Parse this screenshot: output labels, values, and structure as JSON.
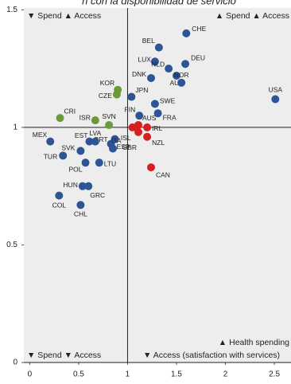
{
  "chart_data": {
    "type": "scatter",
    "title": "n con la disponibilidad de servicio",
    "xlim": [
      -0.06,
      2.67
    ],
    "ylim": [
      0,
      1.508
    ],
    "xticks": [
      0,
      0.5,
      1,
      1.5,
      2,
      2.5
    ],
    "yticks": [
      0,
      0.5,
      1,
      1.5
    ],
    "xref": 1,
    "yref": 1,
    "annotations": [
      "▼ Spend ▲ Access",
      "▲ Spend ▲ Access",
      "▼ Spend ▼ Access",
      "▼ Access (satisfaction with services)",
      "▲ Health spending"
    ],
    "points": [
      {
        "label": "CHE",
        "x": 1.6,
        "y": 1.4,
        "color": "#2d5596"
      },
      {
        "label": "BEL",
        "x": 1.32,
        "y": 1.34,
        "color": "#2d5596"
      },
      {
        "label": "DEU",
        "x": 1.59,
        "y": 1.27,
        "color": "#2d5596"
      },
      {
        "label": "LUX",
        "x": 1.28,
        "y": 1.28,
        "color": "#2d5596"
      },
      {
        "label": "NLD",
        "x": 1.42,
        "y": 1.25,
        "color": "#2d5596"
      },
      {
        "label": "DNK",
        "x": 1.24,
        "y": 1.21,
        "color": "#2d5596"
      },
      {
        "label": "AUT",
        "x": 1.5,
        "y": 1.22,
        "color": "#2d5596"
      },
      {
        "label": "NOR",
        "x": 1.55,
        "y": 1.19,
        "color": "#2d5596"
      },
      {
        "label": "KOR",
        "x": 0.9,
        "y": 1.16,
        "color": "#6a9a3a"
      },
      {
        "label": "CZE",
        "x": 0.89,
        "y": 1.14,
        "color": "#6a9a3a"
      },
      {
        "label": "JPN",
        "x": 1.04,
        "y": 1.13,
        "color": "#2d5596"
      },
      {
        "label": "SWE",
        "x": 1.28,
        "y": 1.1,
        "color": "#2d5596"
      },
      {
        "label": "FIN",
        "x": 1.12,
        "y": 1.05,
        "color": "#2d5596"
      },
      {
        "label": "FRA",
        "x": 1.31,
        "y": 1.06,
        "color": "#2d5596"
      },
      {
        "label": "USA",
        "x": 2.51,
        "y": 1.12,
        "color": "#2d5596"
      },
      {
        "label": "CRI",
        "x": 0.31,
        "y": 1.04,
        "color": "#6a9a3a"
      },
      {
        "label": "ISR",
        "x": 0.67,
        "y": 1.03,
        "color": "#6a9a3a"
      },
      {
        "label": "SVN",
        "x": 0.81,
        "y": 1.01,
        "color": "#6a9a3a"
      },
      {
        "label": "AUS",
        "x": 1.11,
        "y": 1.01,
        "color": "#d62020"
      },
      {
        "label": "ISL",
        "x": 1.05,
        "y": 1.0,
        "color": "#d62020"
      },
      {
        "label": "GBR",
        "x": 1.11,
        "y": 0.98,
        "color": "#d62020"
      },
      {
        "label": "IRL",
        "x": 1.2,
        "y": 1.0,
        "color": "#d62020"
      },
      {
        "label": "NZL",
        "x": 1.2,
        "y": 0.96,
        "color": "#d62020"
      },
      {
        "label": "CAN",
        "x": 1.24,
        "y": 0.83,
        "color": "#d62020"
      },
      {
        "label": "EST",
        "x": 0.61,
        "y": 0.94,
        "color": "#2d5596"
      },
      {
        "label": "PRT",
        "x": 0.83,
        "y": 0.93,
        "color": "#2d5596"
      },
      {
        "label": "ESP",
        "x": 0.87,
        "y": 0.95,
        "color": "#2d5596"
      },
      {
        "label": "MEX",
        "x": 0.21,
        "y": 0.94,
        "color": "#2d5596"
      },
      {
        "label": "SVK",
        "x": 0.52,
        "y": 0.9,
        "color": "#2d5596"
      },
      {
        "label": "LVA",
        "x": 0.67,
        "y": 0.94,
        "color": "#2d5596"
      },
      {
        "label": "ITA",
        "x": 0.85,
        "y": 0.91,
        "color": "#2d5596"
      },
      {
        "label": "TUR",
        "x": 0.34,
        "y": 0.88,
        "color": "#2d5596"
      },
      {
        "label": "POL",
        "x": 0.57,
        "y": 0.85,
        "color": "#2d5596"
      },
      {
        "label": "LTU",
        "x": 0.71,
        "y": 0.85,
        "color": "#2d5596"
      },
      {
        "label": "HUN",
        "x": 0.54,
        "y": 0.75,
        "color": "#2d5596"
      },
      {
        "label": "GRC",
        "x": 0.6,
        "y": 0.75,
        "color": "#2d5596"
      },
      {
        "label": "COL",
        "x": 0.3,
        "y": 0.71,
        "color": "#2d5596"
      },
      {
        "label": "CHL",
        "x": 0.52,
        "y": 0.67,
        "color": "#2d5596"
      }
    ]
  }
}
